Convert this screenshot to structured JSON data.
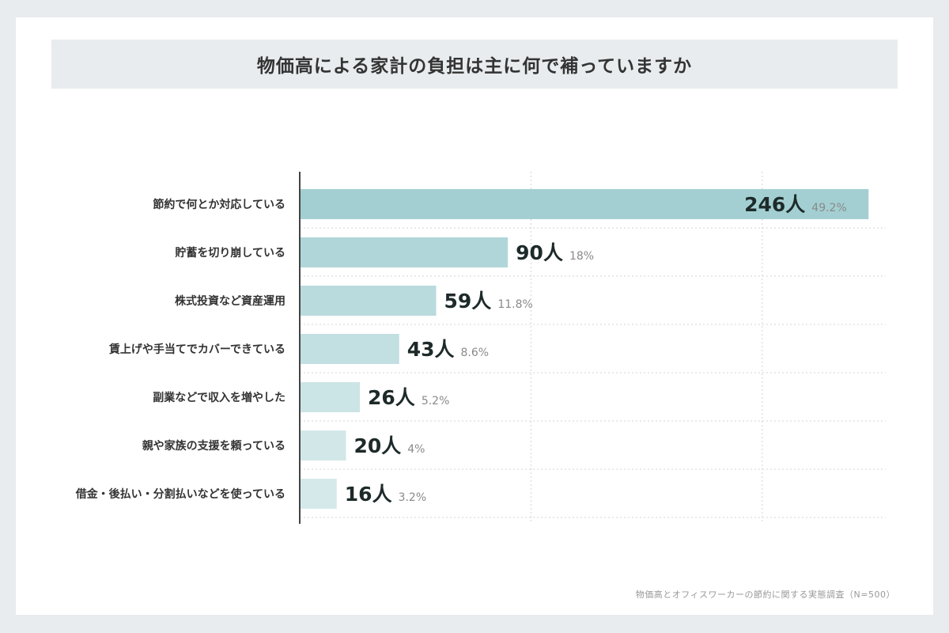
{
  "title": "物価高による家計の負担は主に何で補っていますか",
  "source": "物価高とオフィスワーカーの節約に関する実態調査（N=500）",
  "count_suffix": "人",
  "chart_data": {
    "type": "bar",
    "orientation": "horizontal",
    "title": "物価高による家計の負担は主に何で補っていますか",
    "categories": [
      "節約で何とか対応している",
      "貯蓄を切り崩している",
      "株式投資など資産運用",
      "賃上げや手当てでカバーできている",
      "副業などで収入を増やした",
      "親や家族の支援を頼っている",
      "借金・後払い・分割払いなどを使っている"
    ],
    "values": [
      246,
      90,
      59,
      43,
      26,
      20,
      16
    ],
    "percent_labels": [
      "49.2%",
      "18%",
      "11.8%",
      "8.6%",
      "5.2%",
      "4%",
      "3.2%"
    ],
    "xlim": [
      0,
      250
    ],
    "grid": true,
    "bar_colors": [
      "#a3cfd2",
      "#b0d6d9",
      "#b9dbdd",
      "#c2dfe1",
      "#cbe4e5",
      "#d2e7e8",
      "#d6e9ea"
    ]
  }
}
